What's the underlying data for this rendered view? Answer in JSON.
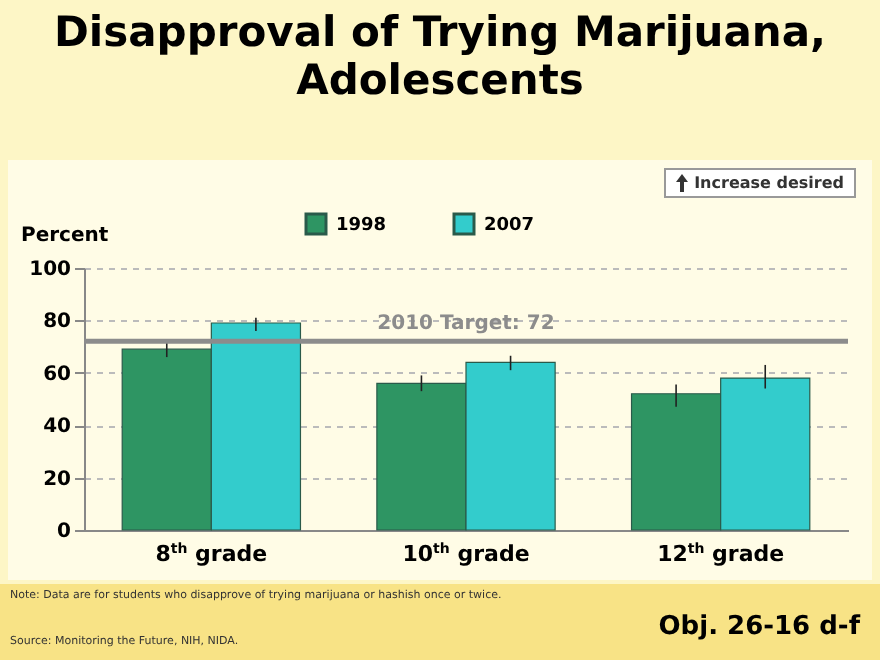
{
  "chart_data": {
    "type": "bar",
    "title": "Disapproval of Trying Marijuana, Adolescents",
    "ylabel": "Percent",
    "categories": [
      "8$^{th}$ grade",
      "10$^{th}$ grade",
      "12$^{th}$ grade"
    ],
    "series": [
      {
        "name": "1998",
        "color": "#2e9563",
        "values": [
          69,
          56,
          52
        ],
        "errors": [
          [
            66,
            71.5
          ],
          [
            53,
            59
          ],
          [
            47,
            55.5
          ]
        ]
      },
      {
        "name": "2007",
        "color": "#33cccc",
        "values": [
          79,
          64,
          58
        ],
        "errors": [
          [
            76,
            81
          ],
          [
            61,
            66.5
          ],
          [
            54,
            63
          ]
        ]
      }
    ],
    "ylim": [
      0,
      100
    ],
    "yticks": [
      0,
      20,
      40,
      60,
      80,
      100
    ],
    "grid": "y",
    "legend": "top",
    "ref_lines": [
      {
        "axis": "y",
        "value": 72,
        "label": "2010 Target: 72",
        "color": "#8c8c8c"
      }
    ],
    "annotations": [
      "Increase desired",
      "Note: Data are for students who disapprove of trying marijuana or hashish once or twice.",
      "Source:  Monitoring the Future, NIH, NIDA.",
      "Obj. 26-16 d-f"
    ]
  }
}
